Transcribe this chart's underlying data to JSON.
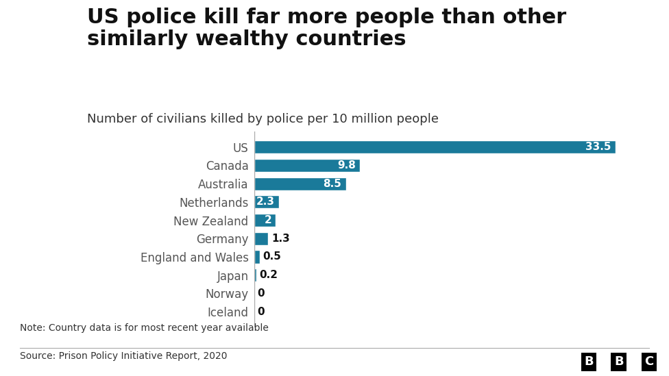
{
  "title": "US police kill far more people than other\nsimilarly wealthy countries",
  "subtitle": "Number of civilians killed by police per 10 million people",
  "note": "Note: Country data is for most recent year available",
  "source": "Source: Prison Policy Initiative Report, 2020",
  "categories": [
    "US",
    "Canada",
    "Australia",
    "Netherlands",
    "New Zealand",
    "Germany",
    "England and Wales",
    "Japan",
    "Norway",
    "Iceland"
  ],
  "values": [
    33.5,
    9.8,
    8.5,
    2.3,
    2.0,
    1.3,
    0.5,
    0.2,
    0,
    0
  ],
  "labels": [
    "33.5",
    "9.8",
    "8.5",
    "2.3",
    "2",
    "1.3",
    "0.5",
    "0.2",
    "0",
    "0"
  ],
  "bar_color": "#1a7a9a",
  "background_color": "#ffffff",
  "title_fontsize": 22,
  "subtitle_fontsize": 13,
  "label_fontsize": 11,
  "tick_fontsize": 12,
  "note_fontsize": 10,
  "source_fontsize": 10,
  "xlim": [
    0,
    36
  ],
  "label_color_inside": "#ffffff",
  "label_color_outside": "#111111",
  "label_threshold": 1.5
}
